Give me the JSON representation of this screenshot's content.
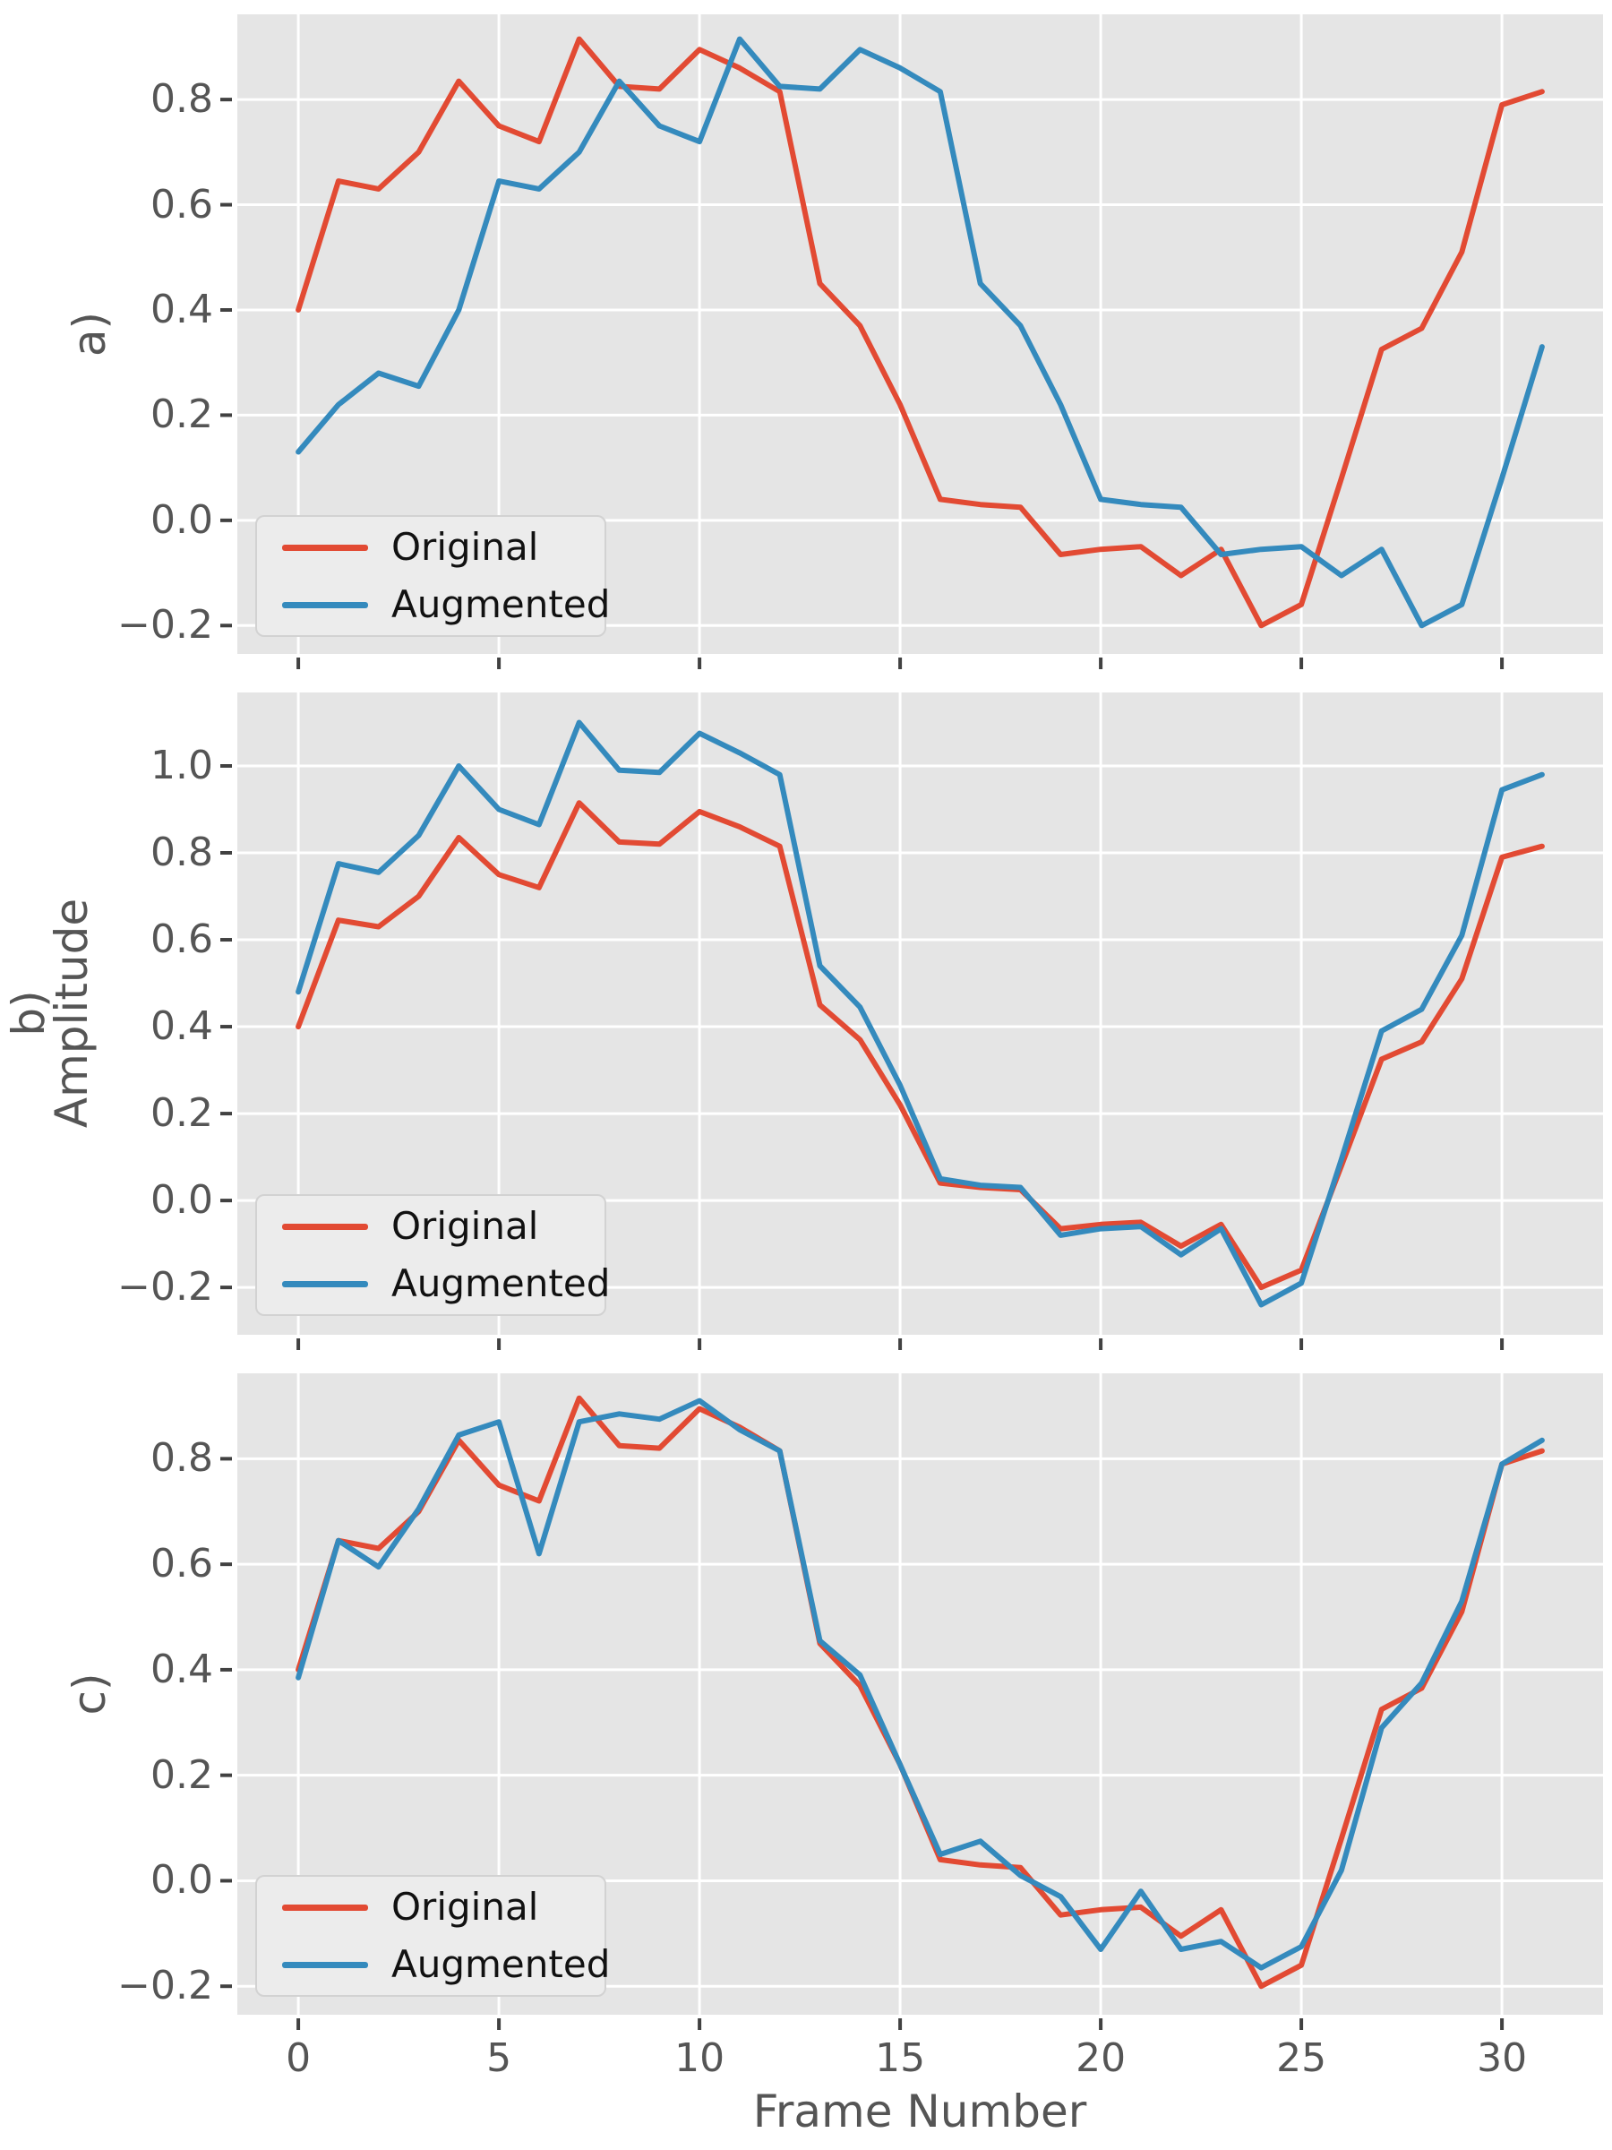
{
  "figure": {
    "xlabel": "Frame Number",
    "ylabel_panel": "b)",
    "ylabel_text": "Amplitude",
    "panel_labels": {
      "a": "a)",
      "b": "b)",
      "c": "c)"
    },
    "colors": {
      "plot_bg": "#E5E5E5",
      "grid": "#FFFFFF",
      "tick_text": "#555555",
      "tick_mark": "#414141",
      "original": "#E24A33",
      "augmented": "#348ABD",
      "legend_bg": "#ECECEC",
      "legend_border": "#D2D2D2"
    },
    "legend_labels": [
      "Original",
      "Augmented"
    ]
  },
  "chart_data": [
    {
      "id": "a",
      "type": "line",
      "panel_label": "a)",
      "x": [
        0,
        1,
        2,
        3,
        4,
        5,
        6,
        7,
        8,
        9,
        10,
        11,
        12,
        13,
        14,
        15,
        16,
        17,
        18,
        19,
        20,
        21,
        22,
        23,
        24,
        25,
        26,
        27,
        28,
        29,
        30,
        31
      ],
      "xlabel": "Frame Number",
      "ylabel": "",
      "x_ticks": [
        0,
        5,
        10,
        15,
        20,
        25,
        30
      ],
      "y_ticks": [
        0.8,
        0.6,
        0.4,
        0.2,
        0.0,
        -0.2
      ],
      "ylim": [
        -0.254,
        0.962
      ],
      "xlim": [
        -1.52,
        32.52
      ],
      "grid": true,
      "legend_position": "lower left",
      "series": [
        {
          "name": "Original",
          "color": "#E24A33",
          "values": [
            0.4,
            0.645,
            0.63,
            0.7,
            0.835,
            0.75,
            0.72,
            0.915,
            0.825,
            0.82,
            0.895,
            0.86,
            0.815,
            0.45,
            0.37,
            0.22,
            0.04,
            0.03,
            0.025,
            -0.065,
            -0.055,
            -0.05,
            -0.105,
            -0.055,
            -0.2,
            -0.16,
            0.08,
            0.325,
            0.365,
            0.51,
            0.79,
            0.815
          ]
        },
        {
          "name": "Augmented",
          "color": "#348ABD",
          "values": [
            0.13,
            0.22,
            0.28,
            0.255,
            0.4,
            0.645,
            0.63,
            0.7,
            0.835,
            0.75,
            0.72,
            0.915,
            0.825,
            0.82,
            0.895,
            0.86,
            0.815,
            0.45,
            0.37,
            0.22,
            0.04,
            0.03,
            0.025,
            -0.065,
            -0.055,
            -0.05,
            -0.105,
            -0.055,
            -0.2,
            -0.16,
            0.08,
            0.33
          ]
        }
      ]
    },
    {
      "id": "b",
      "type": "line",
      "panel_label": "b)",
      "x": [
        0,
        1,
        2,
        3,
        4,
        5,
        6,
        7,
        8,
        9,
        10,
        11,
        12,
        13,
        14,
        15,
        16,
        17,
        18,
        19,
        20,
        21,
        22,
        23,
        24,
        25,
        26,
        27,
        28,
        29,
        30,
        31
      ],
      "xlabel": "Frame Number",
      "ylabel": "Amplitude",
      "x_ticks": [
        0,
        5,
        10,
        15,
        20,
        25,
        30
      ],
      "y_ticks": [
        1.0,
        0.8,
        0.6,
        0.4,
        0.2,
        0.0,
        -0.2
      ],
      "ylim": [
        -0.309,
        1.169
      ],
      "xlim": [
        -1.52,
        32.52
      ],
      "grid": true,
      "legend_position": "lower left",
      "series": [
        {
          "name": "Original",
          "color": "#E24A33",
          "values": [
            0.4,
            0.645,
            0.63,
            0.7,
            0.835,
            0.75,
            0.72,
            0.915,
            0.825,
            0.82,
            0.895,
            0.86,
            0.815,
            0.45,
            0.37,
            0.22,
            0.04,
            0.03,
            0.025,
            -0.065,
            -0.055,
            -0.05,
            -0.105,
            -0.055,
            -0.2,
            -0.16,
            0.08,
            0.325,
            0.365,
            0.51,
            0.79,
            0.815
          ]
        },
        {
          "name": "Augmented",
          "color": "#348ABD",
          "values": [
            0.48,
            0.775,
            0.755,
            0.84,
            1.0,
            0.9,
            0.865,
            1.1,
            0.99,
            0.985,
            1.075,
            1.03,
            0.98,
            0.54,
            0.445,
            0.265,
            0.05,
            0.035,
            0.03,
            -0.08,
            -0.065,
            -0.06,
            -0.125,
            -0.065,
            -0.24,
            -0.19,
            0.095,
            0.39,
            0.44,
            0.61,
            0.945,
            0.98
          ]
        }
      ]
    },
    {
      "id": "c",
      "type": "line",
      "panel_label": "c)",
      "x": [
        0,
        1,
        2,
        3,
        4,
        5,
        6,
        7,
        8,
        9,
        10,
        11,
        12,
        13,
        14,
        15,
        16,
        17,
        18,
        19,
        20,
        21,
        22,
        23,
        24,
        25,
        26,
        27,
        28,
        29,
        30,
        31
      ],
      "xlabel": "Frame Number",
      "ylabel": "",
      "x_ticks": [
        0,
        5,
        10,
        15,
        20,
        25,
        30
      ],
      "y_ticks": [
        0.8,
        0.6,
        0.4,
        0.2,
        0.0,
        -0.2
      ],
      "ylim": [
        -0.254,
        0.962
      ],
      "xlim": [
        -1.52,
        32.52
      ],
      "grid": true,
      "legend_position": "lower left",
      "series": [
        {
          "name": "Original",
          "color": "#E24A33",
          "values": [
            0.4,
            0.645,
            0.63,
            0.7,
            0.835,
            0.75,
            0.72,
            0.915,
            0.825,
            0.82,
            0.895,
            0.86,
            0.815,
            0.45,
            0.37,
            0.22,
            0.04,
            0.03,
            0.025,
            -0.065,
            -0.055,
            -0.05,
            -0.105,
            -0.055,
            -0.2,
            -0.16,
            0.08,
            0.325,
            0.365,
            0.51,
            0.79,
            0.815
          ]
        },
        {
          "name": "Augmented",
          "color": "#348ABD",
          "values": [
            0.385,
            0.645,
            0.595,
            0.705,
            0.845,
            0.87,
            0.62,
            0.87,
            0.885,
            0.875,
            0.91,
            0.855,
            0.815,
            0.455,
            0.39,
            0.22,
            0.05,
            0.075,
            0.01,
            -0.03,
            -0.13,
            -0.02,
            -0.13,
            -0.115,
            -0.165,
            -0.125,
            0.02,
            0.29,
            0.375,
            0.53,
            0.79,
            0.835
          ]
        }
      ]
    }
  ]
}
